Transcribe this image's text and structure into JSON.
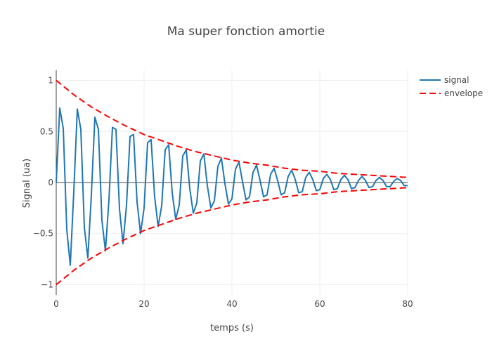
{
  "chart_data": {
    "type": "line",
    "title": "Ma super fonction amortie",
    "xlabel": "temps (s)",
    "ylabel": "Signal (ua)",
    "xlim": [
      0,
      80
    ],
    "ylim": [
      -1.1,
      1.1
    ],
    "x_ticks": [
      0,
      20,
      40,
      60,
      80
    ],
    "y_ticks": [
      -1,
      -0.5,
      0,
      0.5,
      1
    ],
    "x_tick_labels": [
      "0",
      "20",
      "40",
      "60",
      "80"
    ],
    "y_tick_labels": [
      "−1",
      "−0.5",
      "0",
      "0.5",
      "1"
    ],
    "grid": true,
    "legend_position": "top-right",
    "series": [
      {
        "name": "signal",
        "color": "#1f77b4",
        "dash": "solid",
        "x": [
          0,
          0.8,
          1.6,
          2.4,
          3.2,
          4.0,
          4.8,
          5.6,
          6.4,
          7.2,
          8.0,
          8.8,
          9.6,
          10.4,
          11.2,
          12.0,
          12.8,
          13.6,
          14.4,
          15.2,
          16.0,
          16.8,
          17.6,
          18.4,
          19.2,
          20.0,
          20.8,
          21.6,
          22.4,
          23.2,
          24.0,
          24.8,
          25.6,
          26.4,
          27.2,
          28.0,
          28.8,
          29.6,
          30.4,
          31.2,
          32.0,
          32.8,
          33.6,
          34.4,
          35.2,
          36.0,
          36.8,
          37.6,
          38.4,
          39.2,
          40.0,
          40.8,
          41.6,
          42.4,
          43.2,
          44.0,
          44.8,
          45.6,
          46.4,
          47.2,
          48.0,
          48.8,
          49.6,
          50.4,
          51.2,
          52.0,
          52.8,
          53.6,
          54.4,
          55.2,
          56.0,
          56.8,
          57.6,
          58.4,
          59.2,
          60.0,
          60.8,
          61.6,
          62.4,
          63.2,
          64.0,
          64.8,
          65.6,
          66.4,
          67.2,
          68.0,
          68.8,
          69.6,
          70.4,
          71.2,
          72.0,
          72.8,
          73.6,
          74.4,
          75.2,
          76.0,
          76.8,
          77.6,
          78.4,
          79.2,
          80.0
        ],
        "y": [
          0.0,
          0.73,
          0.53,
          -0.46,
          -0.81,
          -0.09,
          0.72,
          0.52,
          -0.44,
          -0.74,
          -0.12,
          0.64,
          0.52,
          -0.37,
          -0.67,
          -0.17,
          0.54,
          0.52,
          -0.26,
          -0.6,
          -0.22,
          0.45,
          0.47,
          -0.19,
          -0.5,
          -0.25,
          0.39,
          0.42,
          -0.14,
          -0.43,
          -0.23,
          0.32,
          0.37,
          -0.1,
          -0.36,
          -0.22,
          0.26,
          0.32,
          -0.06,
          -0.3,
          -0.2,
          0.21,
          0.28,
          -0.03,
          -0.25,
          -0.18,
          0.16,
          0.24,
          -0.01,
          -0.21,
          -0.16,
          0.13,
          0.2,
          0.01,
          -0.17,
          -0.14,
          0.1,
          0.17,
          0.02,
          -0.14,
          -0.12,
          0.08,
          0.14,
          0.02,
          -0.12,
          -0.1,
          0.06,
          0.12,
          0.03,
          -0.1,
          -0.09,
          0.05,
          0.1,
          0.03,
          -0.08,
          -0.07,
          0.04,
          0.08,
          0.03,
          -0.07,
          -0.06,
          0.03,
          0.07,
          0.03,
          -0.06,
          -0.05,
          0.02,
          0.06,
          0.02,
          -0.05,
          -0.04,
          0.02,
          0.05,
          0.02,
          -0.04,
          -0.04,
          0.01,
          0.04,
          0.02,
          -0.03,
          -0.03
        ]
      },
      {
        "name": "envelope",
        "color": "#ff0000",
        "dash": "dashed",
        "x": [
          0,
          4,
          8,
          12,
          16,
          20,
          24,
          28,
          32,
          36,
          40,
          44,
          48,
          52,
          56,
          60,
          64,
          68,
          72,
          76,
          80
        ],
        "y_upper": [
          1.0,
          0.86,
          0.74,
          0.64,
          0.55,
          0.47,
          0.41,
          0.35,
          0.3,
          0.26,
          0.22,
          0.19,
          0.17,
          0.14,
          0.12,
          0.11,
          0.09,
          0.08,
          0.07,
          0.06,
          0.05
        ],
        "y_lower": [
          -1.0,
          -0.86,
          -0.74,
          -0.64,
          -0.55,
          -0.47,
          -0.41,
          -0.35,
          -0.3,
          -0.26,
          -0.22,
          -0.19,
          -0.17,
          -0.14,
          -0.12,
          -0.11,
          -0.09,
          -0.08,
          -0.07,
          -0.06,
          -0.05
        ]
      }
    ]
  }
}
